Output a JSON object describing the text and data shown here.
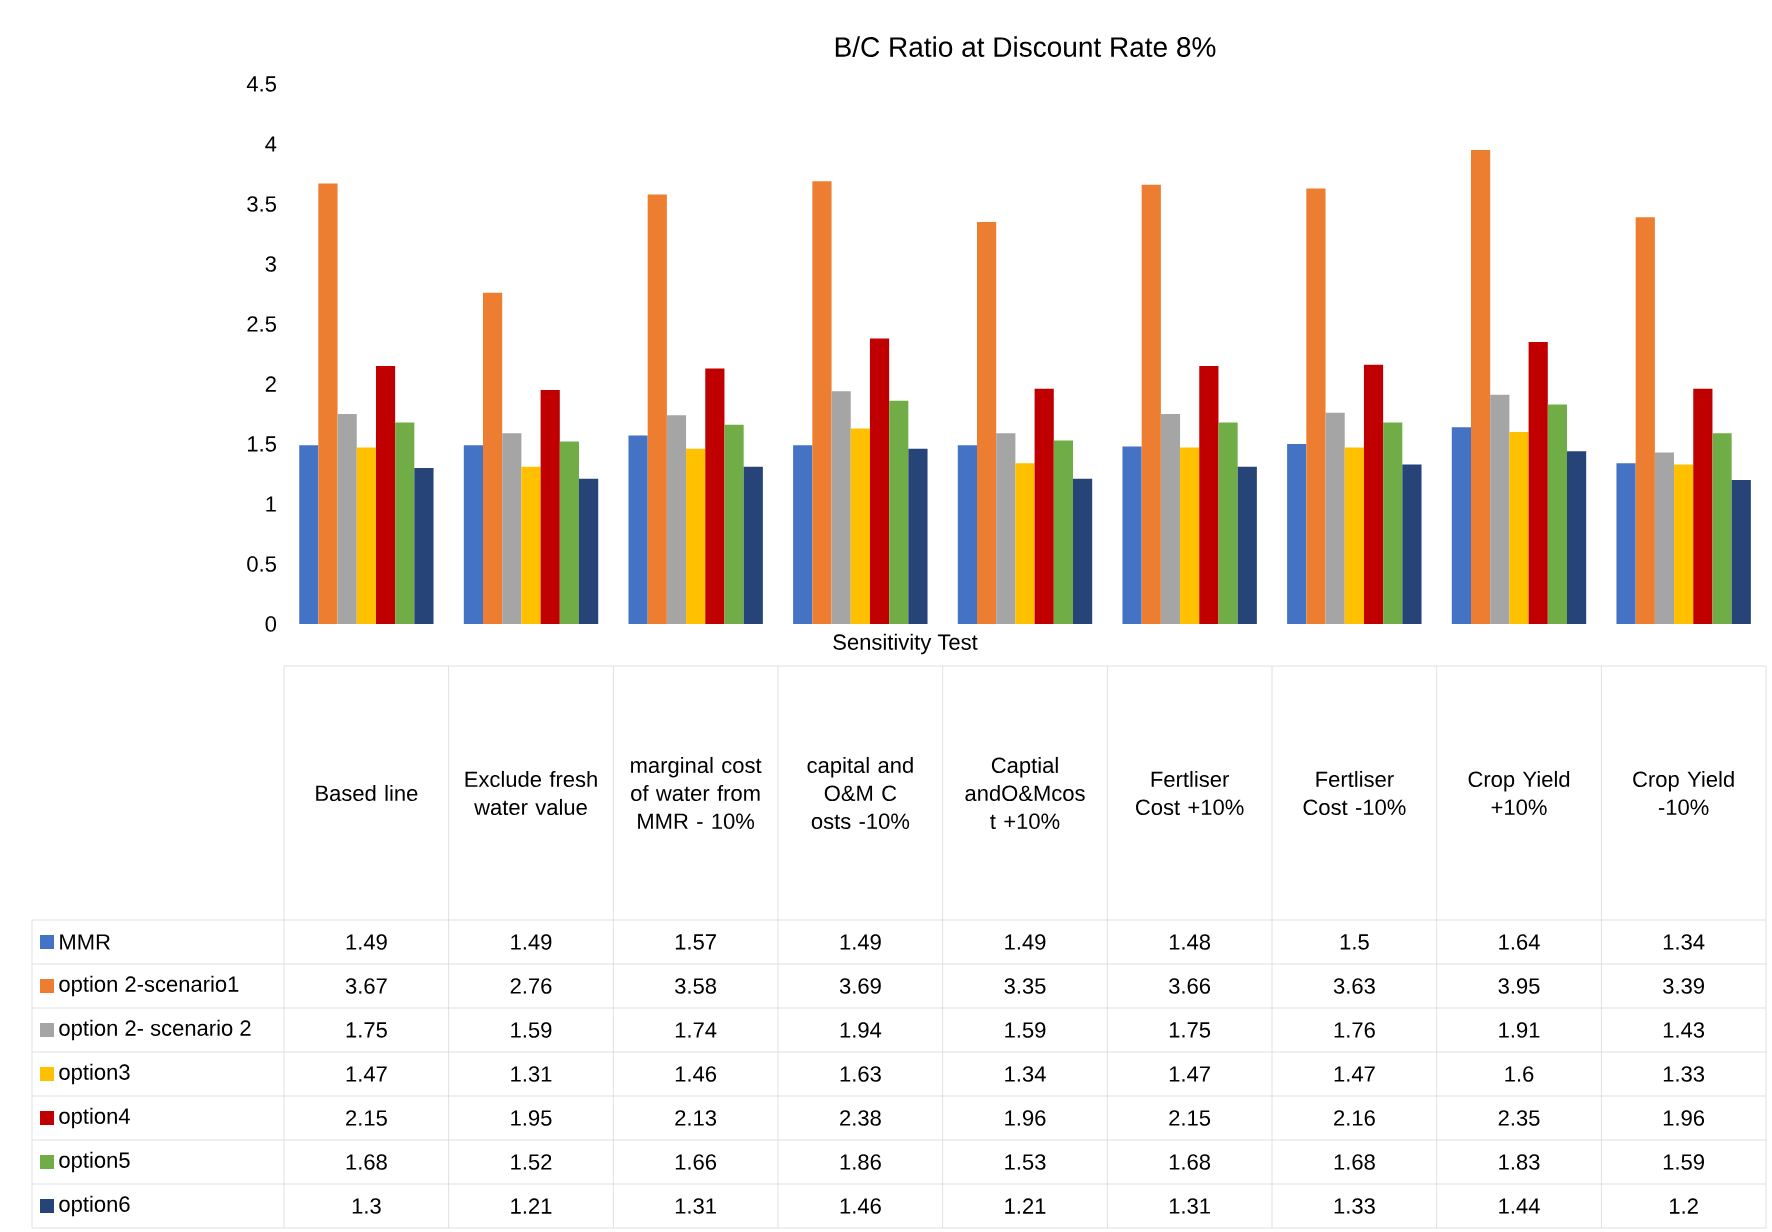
{
  "chart_data": {
    "type": "bar",
    "title": "B/C Ratio at Discount Rate 8%",
    "xlabel": "Sensitivity Test",
    "categories": [
      "Based line",
      "Exclude fresh water value",
      "marginal cost of water from MMR - 10%",
      "capital and O&M C osts -10%",
      "Captial andO&Mcos t +10%",
      "Fertliser Cost +10%",
      "Fertliser Cost -10%",
      "Crop Yield +10%",
      "Crop Yield -10%"
    ],
    "series": [
      {
        "name": "MMR",
        "color": "#4472c4",
        "values": [
          1.49,
          1.49,
          1.57,
          1.49,
          1.49,
          1.48,
          1.5,
          1.64,
          1.34
        ]
      },
      {
        "name": "option 2-scenario1",
        "color": "#ed7d31",
        "values": [
          3.67,
          2.76,
          3.58,
          3.69,
          3.35,
          3.66,
          3.63,
          3.95,
          3.39
        ]
      },
      {
        "name": "option 2- scenario 2",
        "color": "#a5a5a5",
        "values": [
          1.75,
          1.59,
          1.74,
          1.94,
          1.59,
          1.75,
          1.76,
          1.91,
          1.43
        ]
      },
      {
        "name": "option3",
        "color": "#ffc000",
        "values": [
          1.47,
          1.31,
          1.46,
          1.63,
          1.34,
          1.47,
          1.47,
          1.6,
          1.33
        ]
      },
      {
        "name": "option4",
        "color": "#c00000",
        "values": [
          2.15,
          1.95,
          2.13,
          2.38,
          1.96,
          2.15,
          2.16,
          2.35,
          1.96
        ]
      },
      {
        "name": "option5",
        "color": "#70ad47",
        "values": [
          1.68,
          1.52,
          1.66,
          1.86,
          1.53,
          1.68,
          1.68,
          1.83,
          1.59
        ]
      },
      {
        "name": "option6",
        "color": "#264478",
        "values": [
          1.3,
          1.21,
          1.31,
          1.46,
          1.21,
          1.31,
          1.33,
          1.44,
          1.2
        ]
      }
    ],
    "ylim": [
      0,
      4.5
    ],
    "yticks": [
      0,
      0.5,
      1,
      1.5,
      2,
      2.5,
      3,
      3.5,
      4,
      4.5
    ],
    "data_labels": true,
    "legend": "bottom left"
  }
}
